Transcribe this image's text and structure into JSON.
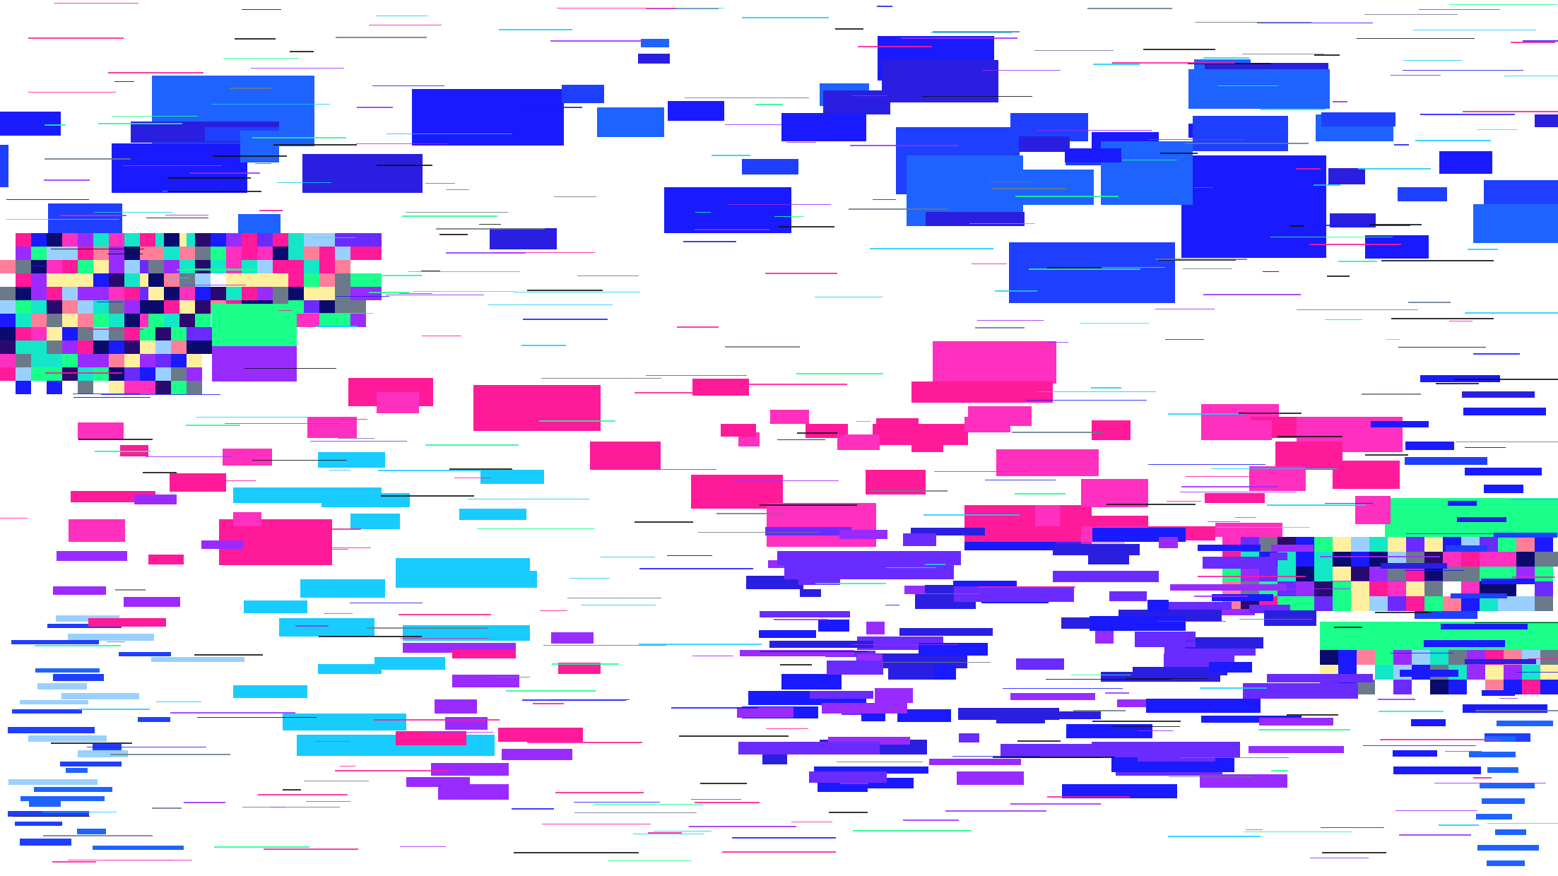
{
  "palette": {
    "background": "#ffffff",
    "blue": "#1a1aff",
    "royal_blue": "#1f3fff",
    "sky_blue": "#1e63ff",
    "magenta": "#ff1a99",
    "hot_pink": "#ff2fbf",
    "cyan": "#18ccff",
    "purple": "#9a2bff",
    "violet": "#6a2bff",
    "indigo": "#2a1fe0",
    "green": "#19ff8a",
    "teal": "#14e6c8",
    "navy": "#0b0b6e",
    "dark_purple": "#2a0a6e",
    "salmon": "#ff7f9a",
    "pale_yellow": "#fff0a0",
    "light_blue": "#9ad0ff",
    "slate": "#6b7a8a",
    "black": "#111111"
  }
}
